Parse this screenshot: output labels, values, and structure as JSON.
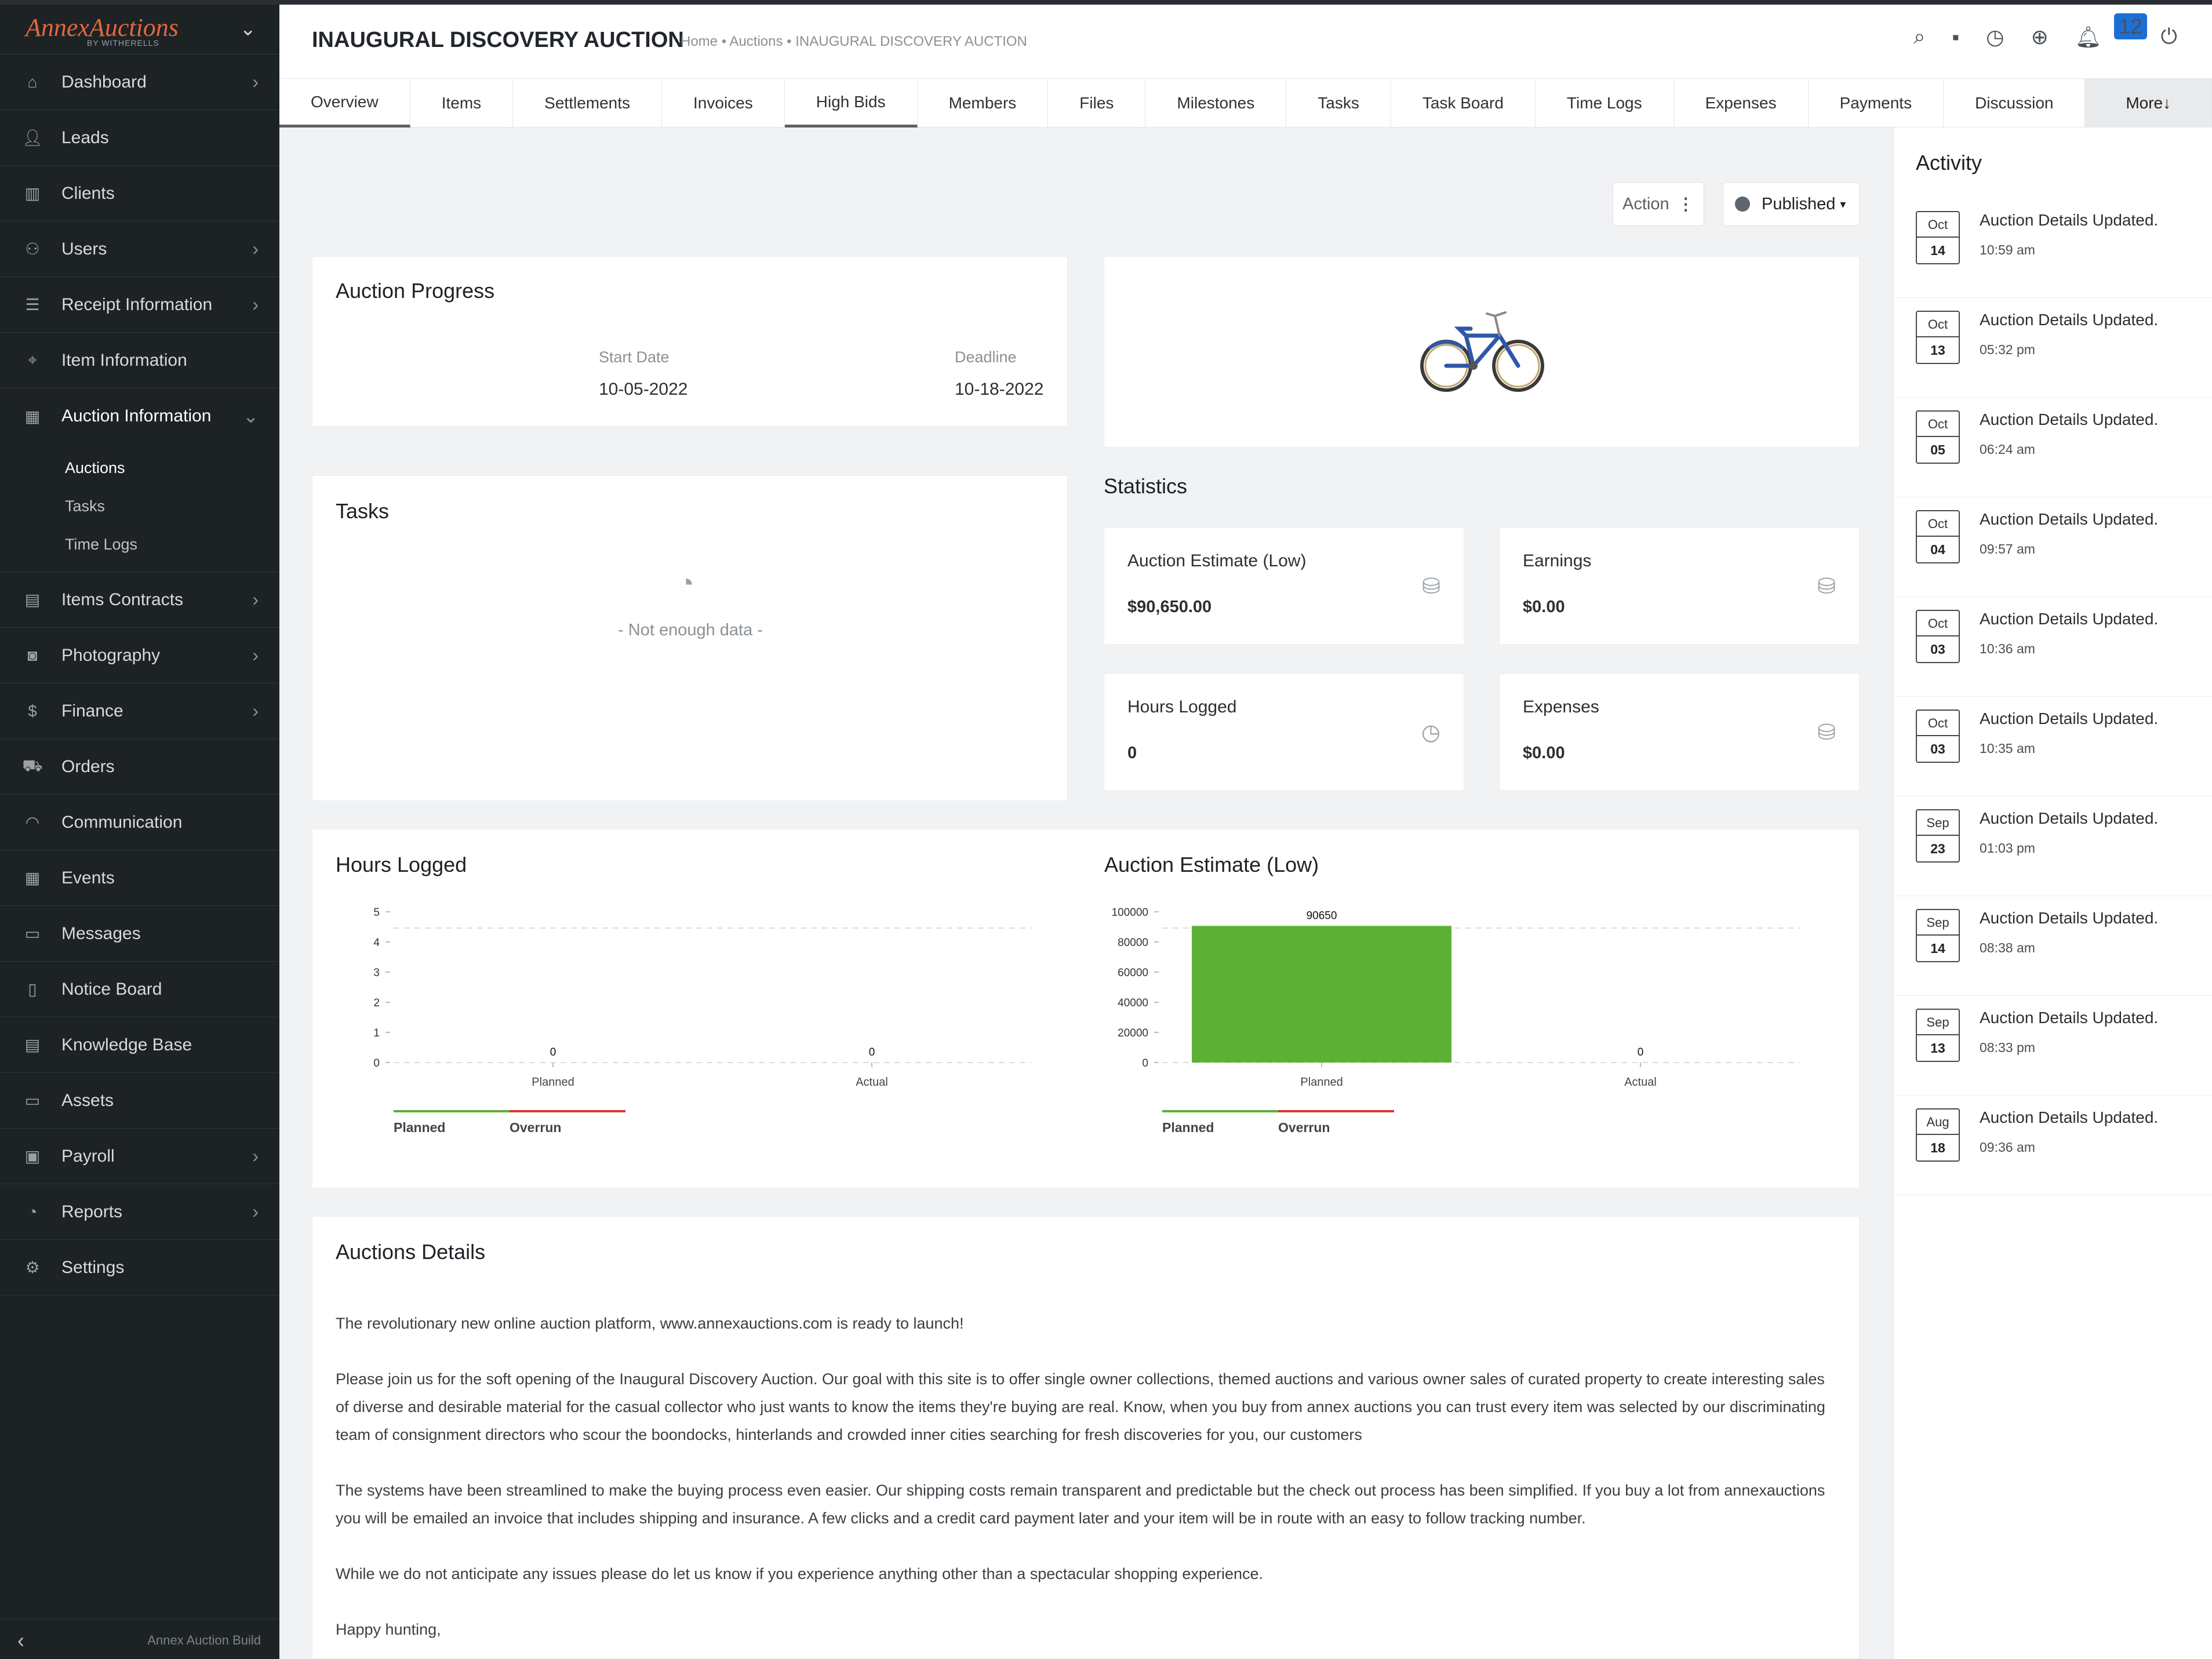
{
  "sidebar": {
    "brand": "AnnexAuctions",
    "brand_sub": "BY WITHERELLS",
    "items": [
      {
        "label": "Dashboard"
      },
      {
        "label": "Leads"
      },
      {
        "label": "Clients"
      },
      {
        "label": "Users"
      },
      {
        "label": "Receipt Information"
      },
      {
        "label": "Item Information"
      },
      {
        "label": "Auction Information"
      },
      {
        "label": "Items Contracts"
      },
      {
        "label": "Photography"
      },
      {
        "label": "Finance"
      },
      {
        "label": "Orders"
      },
      {
        "label": "Communication"
      },
      {
        "label": "Events"
      },
      {
        "label": "Messages"
      },
      {
        "label": "Notice Board"
      },
      {
        "label": "Knowledge Base"
      },
      {
        "label": "Assets"
      },
      {
        "label": "Payroll"
      },
      {
        "label": "Reports"
      },
      {
        "label": "Settings"
      }
    ],
    "sub_items": [
      {
        "label": "Auctions"
      },
      {
        "label": "Tasks"
      },
      {
        "label": "Time Logs"
      }
    ],
    "footer_label": "Annex Auction Build"
  },
  "header": {
    "title": "INAUGURAL DISCOVERY AUCTION",
    "breadcrumb": "Home • Auctions • INAUGURAL DISCOVERY AUCTION",
    "notification_count": "12"
  },
  "tabs": [
    {
      "label": "Overview"
    },
    {
      "label": "Items"
    },
    {
      "label": "Settlements"
    },
    {
      "label": "Invoices"
    },
    {
      "label": "High Bids"
    },
    {
      "label": "Members"
    },
    {
      "label": "Files"
    },
    {
      "label": "Milestones"
    },
    {
      "label": "Tasks"
    },
    {
      "label": "Task Board"
    },
    {
      "label": "Time Logs"
    },
    {
      "label": "Expenses"
    },
    {
      "label": "Payments"
    },
    {
      "label": "Discussion"
    },
    {
      "label": "More↓"
    }
  ],
  "toolbar": {
    "action_label": "Action",
    "status_label": "Published"
  },
  "progress": {
    "title": "Auction Progress",
    "start_label": "Start Date",
    "start_value": "10-05-2022",
    "deadline_label": "Deadline",
    "deadline_value": "10-18-2022"
  },
  "tasks_card": {
    "title": "Tasks",
    "empty_text": "- Not enough data -"
  },
  "statistics": {
    "title": "Statistics",
    "cards": [
      {
        "label": "Auction Estimate (Low)",
        "value": "$90,650.00"
      },
      {
        "label": "Earnings",
        "value": "$0.00"
      },
      {
        "label": "Hours Logged",
        "value": "0"
      },
      {
        "label": "Expenses",
        "value": "$0.00"
      }
    ]
  },
  "chart_data": [
    {
      "type": "bar",
      "title": "Hours Logged",
      "categories": [
        "Planned",
        "Actual"
      ],
      "values": [
        0,
        0
      ],
      "ylim": [
        0,
        5
      ],
      "yticks": [
        "5",
        "4",
        "3",
        "2",
        "1",
        "0"
      ],
      "legend": [
        "Planned",
        "Overrun"
      ]
    },
    {
      "type": "bar",
      "title": "Auction Estimate (Low)",
      "categories": [
        "Planned",
        "Actual"
      ],
      "values": [
        90650,
        0
      ],
      "ylim": [
        0,
        100000
      ],
      "yticks": [
        "100000",
        "80000",
        "60000",
        "40000",
        "20000",
        "0"
      ],
      "legend": [
        "Planned",
        "Overrun"
      ],
      "bar_color": "#5cb135"
    }
  ],
  "details": {
    "title": "Auctions Details",
    "paragraphs": [
      "The revolutionary new online auction platform, www.annexauctions.com is ready to launch!",
      "Please join us for the soft opening of the Inaugural Discovery Auction. Our goal with this site is to offer single owner collections, themed auctions and various owner sales of curated property to create interesting sales of diverse and desirable material for the casual collector who just wants to know the items they're buying are real. Know, when you buy from annex auctions you can trust every item was selected by our discriminating team of consignment directors who scour the boondocks, hinterlands and crowded inner cities searching for fresh discoveries for you, our customers",
      "The systems have been streamlined to make the buying process even easier. Our shipping costs remain transparent and predictable but the check out process has been simplified. If you buy a lot from annexauctions you will be emailed an invoice that includes shipping and insurance. A few clicks and a credit card payment later and your item will be in route with an easy to follow tracking number.",
      "While we do not anticipate any issues please do let us know if you experience anything other than a spectacular shopping experience.",
      "Happy hunting,"
    ]
  },
  "activity": {
    "title": "Activity",
    "items": [
      {
        "month": "Oct",
        "day": "14",
        "text": "Auction Details Updated.",
        "time": "10:59 am"
      },
      {
        "month": "Oct",
        "day": "13",
        "text": "Auction Details Updated.",
        "time": "05:32 pm"
      },
      {
        "month": "Oct",
        "day": "05",
        "text": "Auction Details Updated.",
        "time": "06:24 am"
      },
      {
        "month": "Oct",
        "day": "04",
        "text": "Auction Details Updated.",
        "time": "09:57 am"
      },
      {
        "month": "Oct",
        "day": "03",
        "text": "Auction Details Updated.",
        "time": "10:36 am"
      },
      {
        "month": "Oct",
        "day": "03",
        "text": "Auction Details Updated.",
        "time": "10:35 am"
      },
      {
        "month": "Sep",
        "day": "23",
        "text": "Auction Details Updated.",
        "time": "01:03 pm"
      },
      {
        "month": "Sep",
        "day": "14",
        "text": "Auction Details Updated.",
        "time": "08:38 am"
      },
      {
        "month": "Sep",
        "day": "13",
        "text": "Auction Details Updated.",
        "time": "08:33 pm"
      },
      {
        "month": "Aug",
        "day": "18",
        "text": "Auction Details Updated.",
        "time": "09:36 am"
      }
    ]
  },
  "colors": {
    "sidebar_bg": "#1d2225",
    "accent_green": "#5cb135",
    "overrun_red": "#d9382f",
    "badge_blue": "#1d6fd6"
  }
}
